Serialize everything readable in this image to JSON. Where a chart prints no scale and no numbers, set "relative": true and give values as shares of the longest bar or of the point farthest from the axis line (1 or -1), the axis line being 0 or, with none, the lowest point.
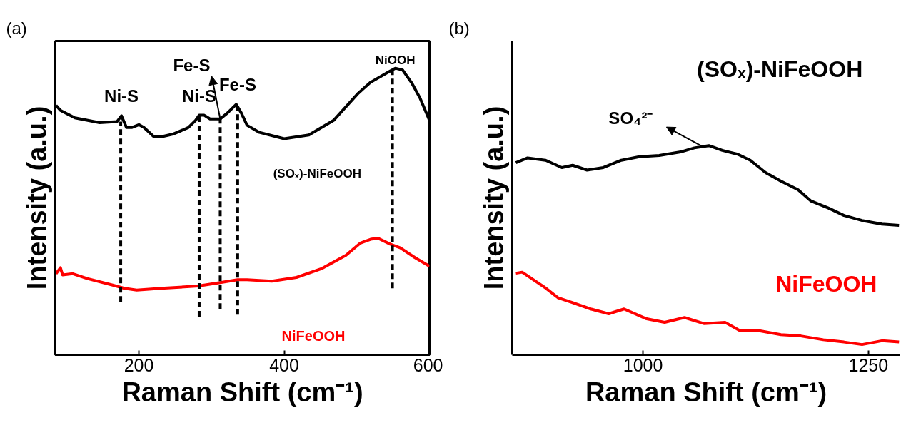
{
  "chart_data": [
    {
      "type": "line",
      "relative": true,
      "xlabel": "Raman Shift (cm⁻¹)",
      "ylabel": "Intensity (a.u.)",
      "xlim": [
        85,
        600
      ],
      "xticks": [
        200,
        400,
        600
      ],
      "grid": false,
      "annotations": [
        "(a)",
        {
          "text": "Ni-S",
          "x": 176,
          "y": 0.834
        },
        {
          "text": "Ni-S",
          "x": 283,
          "y": 0.836
        },
        {
          "text": "Fe-S",
          "x": 312,
          "y": 0.823
        },
        {
          "text": "Fe-S",
          "x": 336,
          "y": 0.874
        },
        {
          "text": "NiOOH",
          "x": 553,
          "y": 1.0
        }
      ],
      "series": [
        {
          "name": "(SOₓ)-NiFeOOH",
          "color": "#000000",
          "x": [
            86,
            92,
            112,
            146,
            170,
            176,
            183,
            190,
            200,
            207,
            220,
            231,
            248,
            268,
            278,
            283,
            290,
            298,
            312,
            322,
            334,
            341,
            349,
            366,
            400,
            434,
            468,
            502,
            519,
            543,
            553,
            563,
            576,
            587,
            600
          ],
          "values": [
            0.87,
            0.853,
            0.827,
            0.81,
            0.814,
            0.834,
            0.793,
            0.793,
            0.803,
            0.793,
            0.763,
            0.761,
            0.771,
            0.793,
            0.818,
            0.836,
            0.836,
            0.823,
            0.823,
            0.844,
            0.874,
            0.844,
            0.801,
            0.776,
            0.754,
            0.767,
            0.818,
            0.913,
            0.951,
            0.986,
            1.0,
            0.994,
            0.947,
            0.896,
            0.818
          ]
        },
        {
          "name": "NiFeOOH",
          "color": "#ff0000",
          "x": [
            86,
            92,
            95,
            109,
            129,
            163,
            180,
            197,
            231,
            282,
            315,
            336,
            349,
            383,
            417,
            451,
            485,
            505,
            519,
            529,
            546,
            560,
            580,
            600
          ],
          "values": [
            0.283,
            0.304,
            0.279,
            0.283,
            0.266,
            0.244,
            0.232,
            0.226,
            0.232,
            0.24,
            0.253,
            0.262,
            0.262,
            0.257,
            0.27,
            0.3,
            0.347,
            0.39,
            0.403,
            0.407,
            0.386,
            0.373,
            0.339,
            0.309
          ]
        },
        {
          "color": "#000000",
          "line_style": "dashed",
          "x": [
            175,
            175
          ],
          "values": [
            0.185,
            0.814
          ]
        },
        {
          "color": "#000000",
          "line_style": "dashed",
          "x": [
            283,
            283
          ],
          "values": [
            0.133,
            0.836
          ]
        },
        {
          "color": "#000000",
          "line_style": "dashed",
          "x": [
            312,
            312
          ],
          "values": [
            0.16,
            0.823
          ]
        },
        {
          "color": "#000000",
          "line_style": "dashed",
          "x": [
            336,
            336
          ],
          "values": [
            0.14,
            0.87
          ]
        },
        {
          "color": "#000000",
          "line_style": "dashed",
          "x": [
            549,
            549
          ],
          "values": [
            0.232,
            1.0
          ]
        }
      ]
    },
    {
      "type": "line",
      "relative": true,
      "xlabel": "Raman Shift (cm⁻¹)",
      "ylabel": "Intensity (a.u.)",
      "xlim": [
        855,
        1285
      ],
      "xticks": [
        1000,
        1250
      ],
      "grid": false,
      "annotations": [
        "(b)",
        {
          "text": "SO₄²⁻",
          "x": 1064,
          "y": 1.0
        }
      ],
      "series": [
        {
          "name": "(SOₓ)-NiFeOOH",
          "color": "#000000",
          "x": [
            859,
            872,
            892,
            910,
            922,
            938,
            956,
            976,
            996,
            1018,
            1043,
            1057,
            1073,
            1088,
            1105,
            1119,
            1136,
            1153,
            1172,
            1186,
            1206,
            1223,
            1243,
            1265,
            1284
          ],
          "values": [
            0.918,
            0.941,
            0.93,
            0.895,
            0.906,
            0.883,
            0.895,
            0.93,
            0.947,
            0.953,
            0.971,
            0.989,
            1.0,
            0.977,
            0.959,
            0.93,
            0.871,
            0.83,
            0.789,
            0.736,
            0.701,
            0.666,
            0.642,
            0.625,
            0.619
          ]
        },
        {
          "name": "NiFeOOH",
          "color": "#ff0000",
          "x": [
            859,
            866,
            878,
            892,
            906,
            922,
            942,
            962,
            979,
            1004,
            1024,
            1046,
            1068,
            1091,
            1108,
            1130,
            1153,
            1175,
            1200,
            1223,
            1243,
            1265,
            1284
          ],
          "values": [
            0.39,
            0.395,
            0.36,
            0.319,
            0.272,
            0.249,
            0.219,
            0.196,
            0.219,
            0.172,
            0.155,
            0.178,
            0.149,
            0.155,
            0.114,
            0.114,
            0.096,
            0.09,
            0.072,
            0.061,
            0.049,
            0.067,
            0.061
          ]
        }
      ]
    }
  ]
}
